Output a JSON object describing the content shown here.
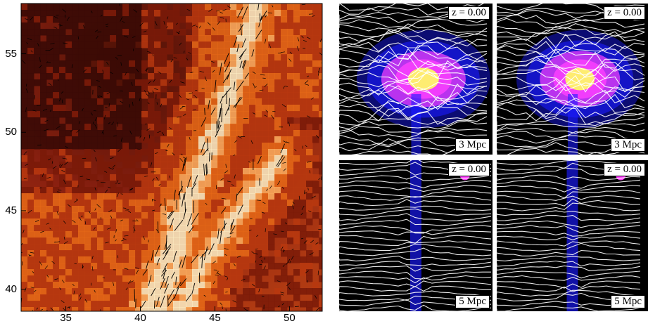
{
  "left_map": {
    "x_ticks": [
      "35",
      "40",
      "45",
      "50"
    ],
    "y_ticks": [
      "55",
      "50",
      "45",
      "40"
    ],
    "x_range": [
      32,
      52.2
    ],
    "y_range": [
      38.6,
      58.2
    ],
    "colormap": [
      "#3a0a05",
      "#7a1a08",
      "#b8380f",
      "#e86a18",
      "#ffb060",
      "#fff2c8"
    ],
    "arrow_color": "#000000"
  },
  "panels": [
    {
      "z_label": "z = 0.00",
      "scale_label": "3 Mpc"
    },
    {
      "z_label": "z = 0.00",
      "scale_label": "3 Mpc"
    },
    {
      "z_label": "z = 0.00",
      "scale_label": "5 Mpc"
    },
    {
      "z_label": "z = 0.00",
      "scale_label": "5 Mpc"
    }
  ],
  "colors": {
    "streamline": "#ffffff",
    "density_low": "#1a1aff",
    "density_mid": "#ff40ff",
    "density_high": "#ffff60",
    "panel_bg": "#000000"
  }
}
